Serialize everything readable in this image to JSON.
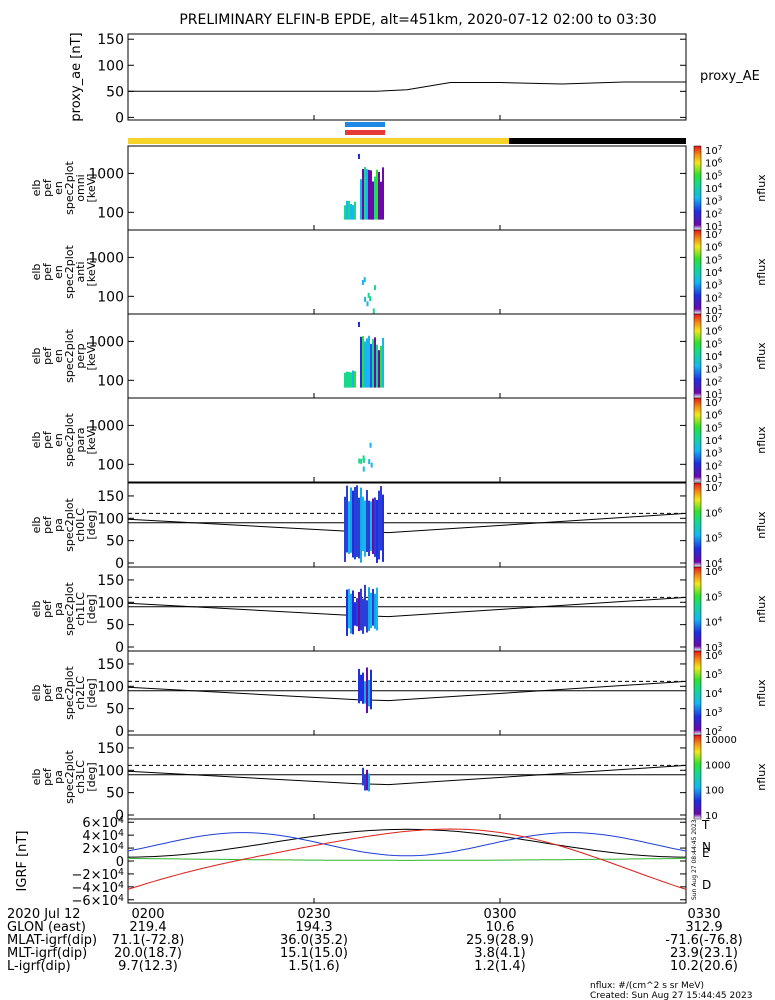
{
  "title": "PRELIMINARY ELFIN-B EPDE, alt=451km, 2020-07-12 02:00 to 03:30",
  "colors": {
    "bar_yellow": "#f5d327",
    "bar_black": "#000000",
    "bar_blue": "#1e88e5",
    "bar_red": "#e53935"
  },
  "chart_data": [
    {
      "type": "line",
      "ylabel": "proxy_ae [nT]",
      "legend": "proxy_AE",
      "ylim": [
        -5,
        160
      ],
      "yticks": [
        "150",
        "100",
        "50",
        "0"
      ],
      "series": [
        {
          "name": "proxy_AE",
          "x": [
            "02:00",
            "02:40",
            "02:45",
            "02:52",
            "03:00",
            "03:10",
            "03:20",
            "03:30"
          ],
          "values": [
            50,
            50,
            53,
            67,
            67,
            64,
            68,
            68
          ]
        }
      ]
    },
    {
      "type": "heatmap",
      "ylabel": [
        "elb",
        "pef",
        "en",
        "spec2plot",
        "omni",
        "[keV]"
      ],
      "yticks": [
        "1000",
        "100"
      ],
      "cbar_label": "nflux",
      "cbar_ticks": [
        "10^7",
        "10^6",
        "10^5",
        "10^4",
        "10^3",
        "10^2",
        "10^1"
      ]
    },
    {
      "type": "heatmap",
      "ylabel": [
        "elb",
        "pef",
        "en",
        "spec2plot",
        "anti",
        "[keV]"
      ],
      "yticks": [
        "1000",
        "100"
      ],
      "cbar_label": "nflux",
      "cbar_ticks": [
        "10^7",
        "10^6",
        "10^5",
        "10^4",
        "10^3",
        "10^2",
        "10^1"
      ]
    },
    {
      "type": "heatmap",
      "ylabel": [
        "elb",
        "pef",
        "en",
        "spec2plot",
        "perp",
        "[keV]"
      ],
      "yticks": [
        "1000",
        "100"
      ],
      "cbar_label": "nflux",
      "cbar_ticks": [
        "10^7",
        "10^6",
        "10^5",
        "10^4",
        "10^3",
        "10^2",
        "10^1"
      ]
    },
    {
      "type": "heatmap",
      "ylabel": [
        "elb",
        "pef",
        "en",
        "spec2plot",
        "para",
        "[keV]"
      ],
      "yticks": [
        "1000",
        "100"
      ],
      "cbar_label": "nflux",
      "cbar_ticks": [
        "10^7",
        "10^6",
        "10^5",
        "10^4",
        "10^3",
        "10^2",
        "10^1"
      ]
    },
    {
      "type": "heatmap",
      "ylabel": [
        "elb",
        "pef",
        "pa",
        "spec2plot",
        "ch0LC",
        "[deg]"
      ],
      "yticks": [
        "150",
        "100",
        "50",
        "0"
      ],
      "cbar_label": "nflux",
      "cbar_ticks": [
        "10^7",
        "10^6",
        "10^5",
        "10^4"
      ]
    },
    {
      "type": "heatmap",
      "ylabel": [
        "elb",
        "pef",
        "pa",
        "spec2plot",
        "ch1LC",
        "[deg]"
      ],
      "yticks": [
        "150",
        "100",
        "50",
        "0"
      ],
      "cbar_label": "nflux",
      "cbar_ticks": [
        "10^6",
        "10^5",
        "10^4",
        "10^3"
      ]
    },
    {
      "type": "heatmap",
      "ylabel": [
        "elb",
        "pef",
        "pa",
        "spec2plot",
        "ch2LC",
        "[deg]"
      ],
      "yticks": [
        "150",
        "100",
        "50",
        "0"
      ],
      "cbar_label": "nflux",
      "cbar_ticks": [
        "10^6",
        "10^5",
        "10^4",
        "10^3",
        "10^2"
      ]
    },
    {
      "type": "heatmap",
      "ylabel": [
        "elb",
        "pef",
        "pa",
        "spec2plot",
        "ch3LC",
        "[deg]"
      ],
      "yticks": [
        "150",
        "100",
        "50",
        "0"
      ],
      "cbar_label": "nflux",
      "cbar_ticks": [
        "10000",
        "1000",
        "100",
        "10"
      ]
    },
    {
      "type": "line",
      "ylabel": "IGRF [nT]",
      "yticks": [
        "6×10^4",
        "4×10^4",
        "2×10^4",
        "0",
        "−2×10^4",
        "−4×10^4",
        "−6×10^4"
      ],
      "series": [
        {
          "name": "T",
          "color": "#000000"
        },
        {
          "name": "N",
          "color": "#1f3fd6"
        },
        {
          "name": "E",
          "color": "#2fb52f"
        },
        {
          "name": "D",
          "color": "#e0201b"
        }
      ]
    }
  ],
  "x_axis": {
    "ticks": [
      "0200",
      "0230",
      "0300",
      "0330"
    ],
    "rows": [
      {
        "label": "2020 Jul 12",
        "values": [
          "0200",
          "0230",
          "0300",
          "0330"
        ]
      },
      {
        "label": "GLON (east)",
        "values": [
          "219.4",
          "194.3",
          "10.6",
          "312.9"
        ]
      },
      {
        "label": "MLAT-igrf(dip)",
        "values": [
          "71.1(-72.8)",
          "36.0(35.2)",
          "25.9(28.9)",
          "-71.6(-76.8)"
        ]
      },
      {
        "label": "MLT-igrf(dip)",
        "values": [
          "20.0(18.7)",
          "15.1(15.0)",
          "3.8(4.1)",
          "23.9(23.1)"
        ]
      },
      {
        "label": "L-igrf(dip)",
        "values": [
          "9.7(12.3)",
          "1.5(1.6)",
          "1.2(1.4)",
          "10.2(20.6)"
        ]
      }
    ]
  },
  "footer": {
    "units": "nflux: #/(cm^2 s sr MeV)",
    "created": "Created: Sun Aug 27 15:44:45 2023",
    "stamp": "Sun Aug 27 08:44:45 2023"
  }
}
